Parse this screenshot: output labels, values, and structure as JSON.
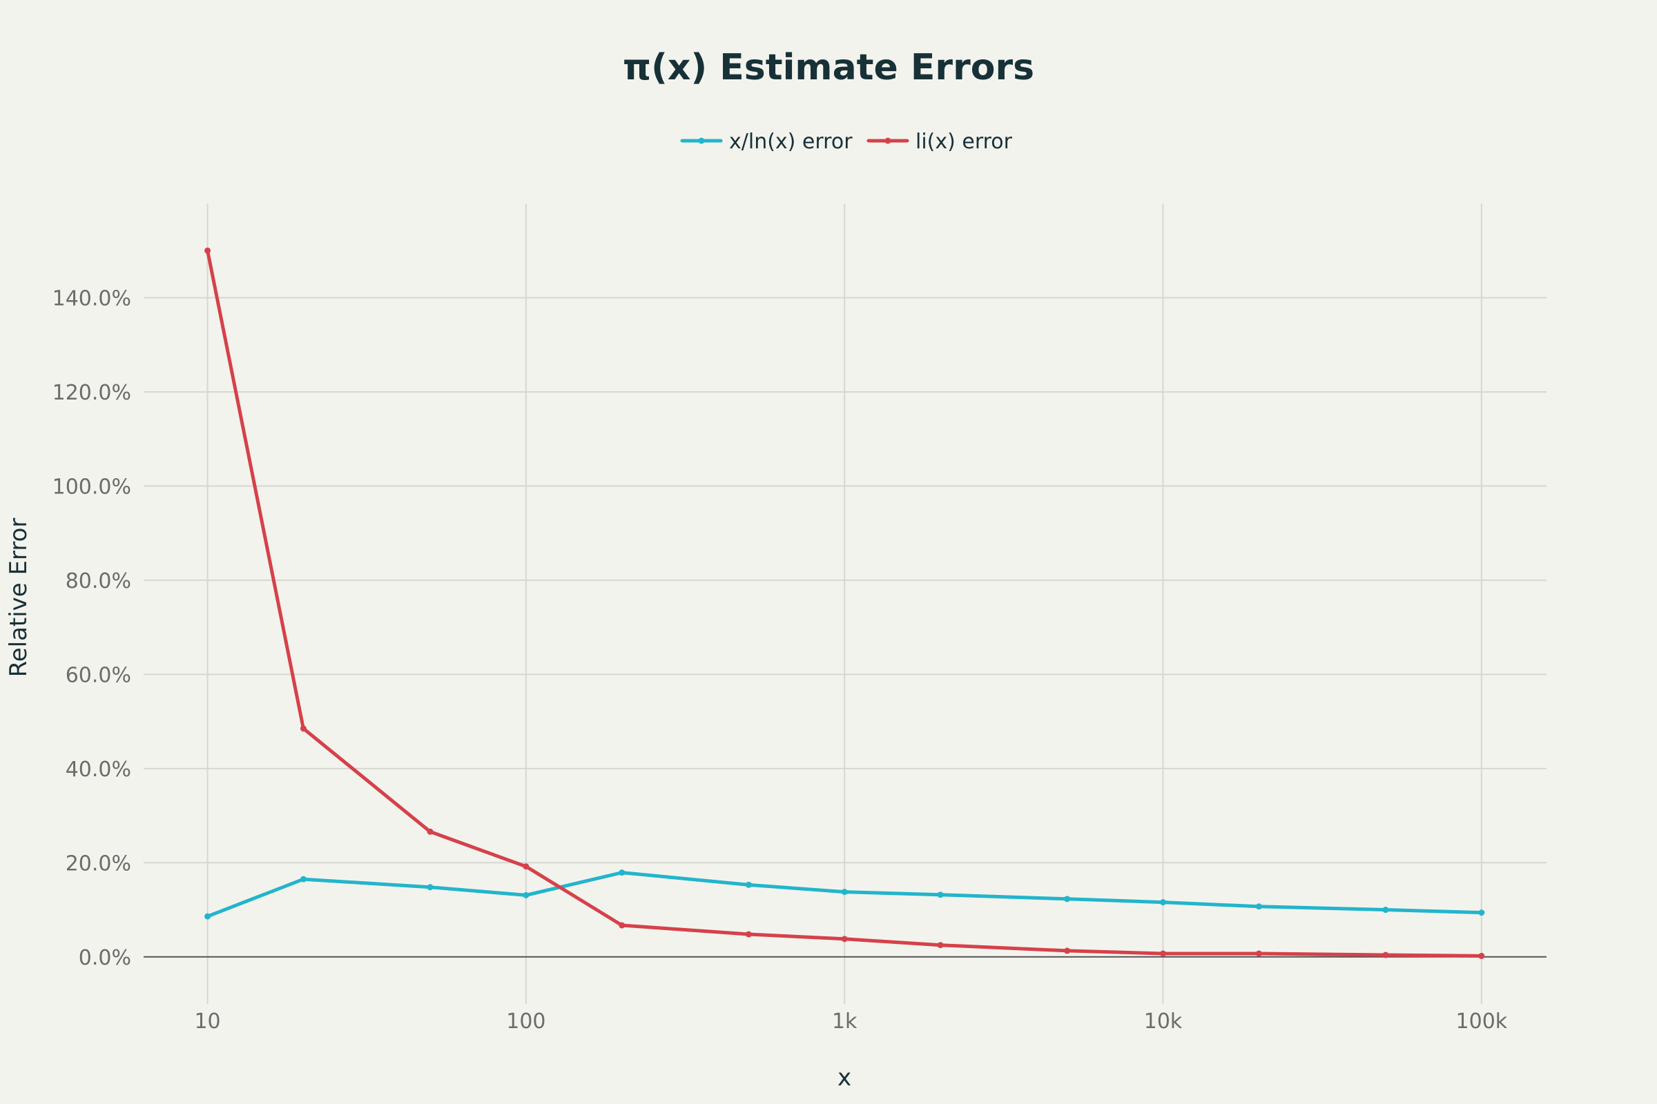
{
  "chart_data": {
    "type": "line",
    "title": "π(x) Estimate Errors",
    "xlabel": "x",
    "ylabel": "Relative Error",
    "x_scale": "log",
    "xlim": [
      6.3,
      160000
    ],
    "ylim": [
      -10,
      160
    ],
    "x_ticks": [
      {
        "value": 10,
        "label": "10"
      },
      {
        "value": 100,
        "label": "100"
      },
      {
        "value": 1000,
        "label": "1k"
      },
      {
        "value": 10000,
        "label": "10k"
      },
      {
        "value": 100000,
        "label": "100k"
      }
    ],
    "y_ticks": [
      {
        "value": 0,
        "label": "0.0%"
      },
      {
        "value": 20,
        "label": "20.0%"
      },
      {
        "value": 40,
        "label": "40.0%"
      },
      {
        "value": 60,
        "label": "60.0%"
      },
      {
        "value": 80,
        "label": "80.0%"
      },
      {
        "value": 100,
        "label": "100.0%"
      },
      {
        "value": 120,
        "label": "120.0%"
      },
      {
        "value": 140,
        "label": "140.0%"
      }
    ],
    "x": [
      10,
      20,
      50,
      100,
      200,
      500,
      1000,
      2000,
      5000,
      10000,
      20000,
      50000,
      100000
    ],
    "series": [
      {
        "name": "x/ln(x) error",
        "color": "#22b5cc",
        "values": [
          8.6,
          16.5,
          14.8,
          13.1,
          17.9,
          15.3,
          13.8,
          13.2,
          12.3,
          11.6,
          10.7,
          10.0,
          9.4
        ]
      },
      {
        "name": "li(x) error",
        "color": "#d6414a",
        "values": [
          150.0,
          48.5,
          26.6,
          19.2,
          6.7,
          4.8,
          3.8,
          2.5,
          1.3,
          0.7,
          0.7,
          0.4,
          0.2
        ]
      }
    ],
    "legend_position": "top-center",
    "grid": true
  }
}
